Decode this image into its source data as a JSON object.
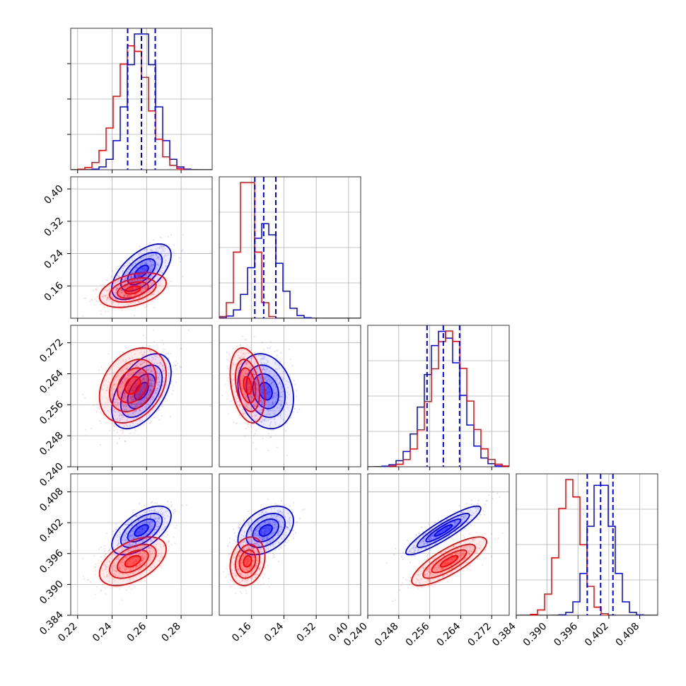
{
  "colors": {
    "series_a": "#0000ff",
    "series_b": "#ff0000",
    "grid": "#b0b0b0"
  },
  "chart_data": {
    "type": "corner",
    "grid_lines": true,
    "parameters": [
      {
        "range": [
          0.216,
          0.298
        ],
        "ticks": [
          0.22,
          0.24,
          0.26,
          0.28
        ],
        "tick_labels": [
          "0.22",
          "0.24",
          "0.26",
          "0.28"
        ]
      },
      {
        "range": [
          0.08,
          0.43
        ],
        "ticks": [
          0.16,
          0.24,
          0.32,
          0.4
        ],
        "tick_labels": [
          "0.16",
          "0.24",
          "0.32",
          "0.40"
        ]
      },
      {
        "range": [
          0.24,
          0.2765
        ],
        "ticks": [
          0.24,
          0.248,
          0.256,
          0.264,
          0.272
        ],
        "tick_labels": [
          "0.240",
          "0.248",
          "0.256",
          "0.264",
          "0.272"
        ]
      },
      {
        "range": [
          0.384,
          0.4115
        ],
        "ticks": [
          0.384,
          0.39,
          0.396,
          0.402,
          0.408
        ],
        "tick_labels": [
          "0.384",
          "0.390",
          "0.396",
          "0.402",
          "0.408"
        ]
      }
    ],
    "series": [
      {
        "color": "#0000ff",
        "mean": [
          0.257,
          0.195,
          0.2595,
          0.4005
        ],
        "sd": [
          0.008,
          0.032,
          0.0045,
          0.0022
        ],
        "corr": [
          [
            1,
            0.6,
            0.5,
            0.6
          ],
          [
            0.6,
            1,
            -0.2,
            0.4
          ],
          [
            0.5,
            -0.2,
            1,
            0.9
          ],
          [
            0.6,
            0.4,
            0.9,
            1
          ]
        ],
        "quantiles": [
          [
            0.249,
            0.257,
            0.265
          ],
          [
            0.168,
            0.19,
            0.22
          ],
          [
            0.2553,
            0.2595,
            0.2637
          ],
          [
            0.3978,
            0.4004,
            0.4028
          ]
        ]
      },
      {
        "color": "#ff0000",
        "mean": [
          0.252,
          0.15,
          0.261,
          0.3945
        ],
        "sd": [
          0.009,
          0.02,
          0.0045,
          0.0022
        ],
        "corr": [
          [
            1,
            0.4,
            0.3,
            0.5
          ],
          [
            0.4,
            1,
            -0.3,
            0.2
          ],
          [
            0.3,
            -0.3,
            1,
            0.8
          ],
          [
            0.5,
            0.2,
            0.8,
            1
          ]
        ]
      }
    ],
    "xlabel": "",
    "ylabel": "",
    "title": ""
  }
}
